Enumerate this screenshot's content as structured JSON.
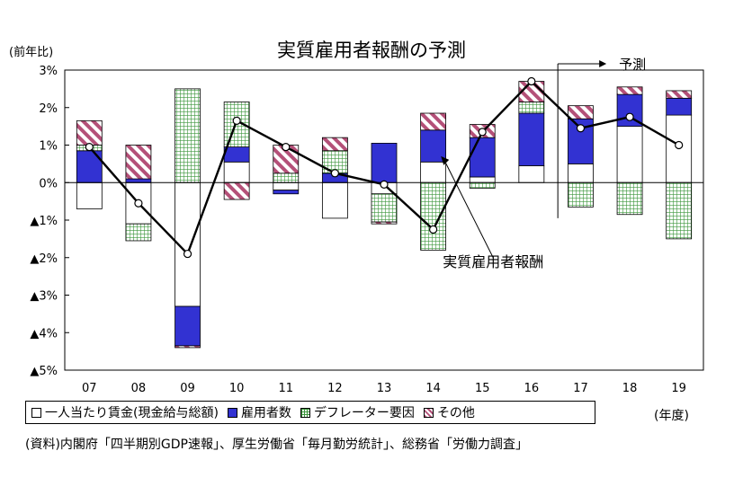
{
  "chart_data": {
    "type": "bar",
    "title": "実質雇用者報酬の予測",
    "ylabel": "(前年比)",
    "xlabel": "(年度)",
    "ylim": [
      -5,
      3
    ],
    "yticks": [
      3,
      2,
      1,
      0,
      -1,
      -2,
      -3,
      -4,
      -5
    ],
    "ytick_labels": [
      "3%",
      "2%",
      "1%",
      "0%",
      "▲1%",
      "▲2%",
      "▲3%",
      "▲4%",
      "▲5%"
    ],
    "categories": [
      "07",
      "08",
      "09",
      "10",
      "11",
      "12",
      "13",
      "14",
      "15",
      "16",
      "17",
      "18",
      "19"
    ],
    "series": [
      {
        "name": "一人当たり賃金(現金給与総額)",
        "color": "#ffffff",
        "pattern": "none",
        "values": [
          -0.7,
          -1.1,
          -3.3,
          0.55,
          -0.2,
          -0.95,
          -0.3,
          0.55,
          0.15,
          0.45,
          0.5,
          1.5,
          1.8
        ]
      },
      {
        "name": "雇用者数",
        "color": "#3232d2",
        "pattern": "solid",
        "values": [
          0.85,
          0.1,
          -1.05,
          0.4,
          -0.1,
          0.25,
          1.05,
          0.85,
          1.05,
          1.4,
          1.2,
          0.85,
          0.45
        ]
      },
      {
        "name": "デフレーター要因",
        "color": "#3c963c",
        "pattern": "grid",
        "values": [
          0.15,
          -0.45,
          2.5,
          1.2,
          0.25,
          0.6,
          -0.75,
          -1.8,
          -0.15,
          0.3,
          -0.65,
          -0.85,
          -1.5
        ]
      },
      {
        "name": "その他",
        "color": "#b45078",
        "pattern": "hatch",
        "values": [
          0.65,
          0.9,
          -0.05,
          -0.45,
          0.75,
          0.35,
          -0.05,
          0.45,
          0.35,
          0.55,
          0.35,
          0.2,
          0.2
        ]
      }
    ],
    "line": {
      "name": "実質雇用者報酬",
      "values": [
        0.95,
        -0.55,
        -1.9,
        1.65,
        0.95,
        0.25,
        -0.05,
        -1.25,
        1.35,
        2.7,
        1.45,
        1.75,
        1.0
      ]
    },
    "annotations": [
      {
        "text": "実質雇用者報酬",
        "target_index": 8
      },
      {
        "text": "予測",
        "from_index": 10
      }
    ],
    "grid": false,
    "legend_position": "bottom"
  },
  "legend": [
    "一人当たり賃金(現金給与総額)",
    "雇用者数",
    "デフレーター要因",
    "その他"
  ],
  "source": "(資料)内閣府「四半期別GDP速報」、厚生労働省「毎月勤労統計」、総務省「労働力調査」"
}
